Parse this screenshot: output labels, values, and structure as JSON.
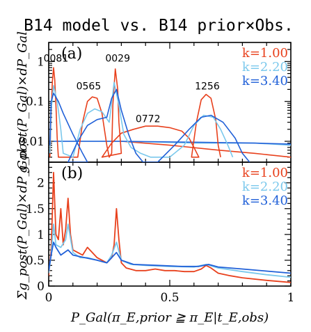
{
  "chart_data": [
    {
      "panel": "(a)",
      "type": "line",
      "title": "B14 model vs. B14 prior×Obs.",
      "xlabel": "",
      "ylabel": "g_post(P_Gal)×dP_Gal",
      "yscale": "log",
      "xlim": [
        0,
        1
      ],
      "ylim": [
        0.003,
        3
      ],
      "yticks": [
        {
          "v": 0.01,
          "label": "0.01"
        },
        {
          "v": 0.1,
          "label": "0.1"
        },
        {
          "v": 1,
          "label": "1"
        }
      ],
      "annotations": [
        {
          "text": "0081",
          "x": 0.03,
          "y": 1.0
        },
        {
          "text": "0029",
          "x": 0.285,
          "y": 1.0
        },
        {
          "text": "0565",
          "x": 0.165,
          "y": 0.2
        },
        {
          "text": "0772",
          "x": 0.41,
          "y": 0.03
        },
        {
          "text": "1256",
          "x": 0.655,
          "y": 0.2
        }
      ],
      "series": [
        {
          "name": "k=1.00",
          "color": "#e8401c",
          "points": [
            [
              0.005,
              0.004
            ],
            [
              0.01,
              0.05
            ],
            [
              0.015,
              0.3
            ],
            [
              0.02,
              0.7
            ],
            [
              0.025,
              0.35
            ],
            [
              0.03,
              0.08
            ],
            [
              0.035,
              0.012
            ],
            [
              0.04,
              0.004
            ],
            [
              0.12,
              0.004
            ],
            [
              0.14,
              0.03
            ],
            [
              0.16,
              0.1
            ],
            [
              0.18,
              0.13
            ],
            [
              0.2,
              0.12
            ],
            [
              0.22,
              0.05
            ],
            [
              0.24,
              0.008
            ],
            [
              0.25,
              0.004
            ],
            [
              0.26,
              0.005
            ],
            [
              0.265,
              0.08
            ],
            [
              0.275,
              0.65
            ],
            [
              0.285,
              0.2
            ],
            [
              0.29,
              0.03
            ],
            [
              0.3,
              0.005
            ],
            [
              0.22,
              0.004
            ],
            [
              0.26,
              0.009
            ],
            [
              0.3,
              0.016
            ],
            [
              0.35,
              0.02
            ],
            [
              0.4,
              0.024
            ],
            [
              0.45,
              0.024
            ],
            [
              0.5,
              0.022
            ],
            [
              0.55,
              0.018
            ],
            [
              0.58,
              0.012
            ],
            [
              0.6,
              0.007
            ],
            [
              0.62,
              0.004
            ],
            [
              0.59,
              0.004
            ],
            [
              0.61,
              0.03
            ],
            [
              0.63,
              0.11
            ],
            [
              0.65,
              0.15
            ],
            [
              0.67,
              0.12
            ],
            [
              0.69,
              0.035
            ],
            [
              0.7,
              0.008
            ],
            [
              0.71,
              0.004
            ]
          ]
        },
        {
          "name": "k=2.20",
          "color": "#7ac8ec",
          "points": [
            [
              0.005,
              0.005
            ],
            [
              0.01,
              0.06
            ],
            [
              0.02,
              0.25
            ],
            [
              0.035,
              0.1
            ],
            [
              0.05,
              0.02
            ],
            [
              0.06,
              0.005
            ],
            [
              0.1,
              0.004
            ],
            [
              0.13,
              0.02
            ],
            [
              0.16,
              0.05
            ],
            [
              0.19,
              0.065
            ],
            [
              0.22,
              0.055
            ],
            [
              0.25,
              0.03
            ],
            [
              0.27,
              0.3
            ],
            [
              0.29,
              0.08
            ],
            [
              0.31,
              0.015
            ],
            [
              0.34,
              0.007
            ],
            [
              0.38,
              0.005
            ],
            [
              0.42,
              0.004
            ],
            [
              0.5,
              0.004
            ],
            [
              0.56,
              0.008
            ],
            [
              0.6,
              0.025
            ],
            [
              0.64,
              0.045
            ],
            [
              0.68,
              0.04
            ],
            [
              0.71,
              0.02
            ],
            [
              0.74,
              0.008
            ],
            [
              0.76,
              0.004
            ]
          ]
        },
        {
          "name": "k=3.40",
          "color": "#2060d8",
          "points": [
            [
              0.005,
              0.008
            ],
            [
              0.01,
              0.1
            ],
            [
              0.02,
              0.16
            ],
            [
              0.04,
              0.1
            ],
            [
              0.06,
              0.05
            ],
            [
              0.1,
              0.015
            ],
            [
              0.14,
              0.005
            ],
            [
              0.16,
              0.003
            ],
            [
              0.08,
              0.003
            ],
            [
              0.12,
              0.01
            ],
            [
              0.16,
              0.025
            ],
            [
              0.2,
              0.035
            ],
            [
              0.24,
              0.04
            ],
            [
              0.26,
              0.12
            ],
            [
              0.28,
              0.2
            ],
            [
              0.3,
              0.06
            ],
            [
              0.33,
              0.015
            ],
            [
              0.36,
              0.005
            ],
            [
              0.39,
              0.003
            ],
            [
              0.45,
              0.003
            ],
            [
              0.52,
              0.008
            ],
            [
              0.58,
              0.02
            ],
            [
              0.63,
              0.04
            ],
            [
              0.67,
              0.045
            ],
            [
              0.72,
              0.03
            ],
            [
              0.77,
              0.012
            ],
            [
              0.8,
              0.005
            ],
            [
              0.83,
              0.003
            ]
          ]
        }
      ],
      "tails": [
        {
          "name": "k=1.00",
          "color": "#e8401c",
          "points": [
            [
              0.3,
              0.01
            ],
            [
              0.5,
              0.008
            ],
            [
              0.7,
              0.006
            ],
            [
              0.85,
              0.005
            ],
            [
              1.0,
              0.004
            ]
          ]
        },
        {
          "name": "k=2.20",
          "color": "#7ac8ec",
          "points": [
            [
              0.05,
              0.01
            ],
            [
              0.3,
              0.01
            ],
            [
              0.6,
              0.009
            ],
            [
              0.85,
              0.009
            ],
            [
              1.0,
              0.008
            ]
          ]
        },
        {
          "name": "k=3.40",
          "color": "#2060d8",
          "points": [
            [
              0.02,
              0.01
            ],
            [
              0.3,
              0.01
            ],
            [
              0.6,
              0.0095
            ],
            [
              0.85,
              0.009
            ],
            [
              1.0,
              0.0085
            ]
          ]
        }
      ],
      "legend": [
        {
          "label": "k=1.00",
          "color": "#e8401c"
        },
        {
          "label": "k=2.20",
          "color": "#7ac8ec"
        },
        {
          "label": "k=3.40",
          "color": "#2060d8"
        }
      ],
      "legend_position": "top-right"
    },
    {
      "panel": "(b)",
      "type": "line",
      "xlabel": "P_Gal(π_E,prior ≧ π_E|t_E,obs)",
      "ylabel": "Σg_post(P_Gal)×dP_Gal",
      "xlim": [
        0,
        1
      ],
      "ylim": [
        0,
        2.4
      ],
      "xticks": [
        {
          "v": 0,
          "label": "0"
        },
        {
          "v": 0.5,
          "label": "0.5"
        },
        {
          "v": 1,
          "label": "1"
        }
      ],
      "yticks": [
        {
          "v": 0,
          "label": "0"
        },
        {
          "v": 0.5,
          "label": "0.5"
        },
        {
          "v": 1,
          "label": "1"
        },
        {
          "v": 1.5,
          "label": "1.5"
        },
        {
          "v": 2,
          "label": "2"
        }
      ],
      "series": [
        {
          "name": "k=1.00",
          "color": "#e8401c",
          "points": [
            [
              0,
              0.2
            ],
            [
              0.01,
              0.7
            ],
            [
              0.015,
              1.4
            ],
            [
              0.02,
              2.2
            ],
            [
              0.03,
              1.0
            ],
            [
              0.04,
              0.9
            ],
            [
              0.05,
              1.5
            ],
            [
              0.06,
              0.8
            ],
            [
              0.07,
              1.1
            ],
            [
              0.08,
              1.7
            ],
            [
              0.09,
              1.0
            ],
            [
              0.1,
              0.7
            ],
            [
              0.12,
              0.65
            ],
            [
              0.14,
              0.6
            ],
            [
              0.16,
              0.75
            ],
            [
              0.18,
              0.65
            ],
            [
              0.2,
              0.55
            ],
            [
              0.22,
              0.5
            ],
            [
              0.24,
              0.45
            ],
            [
              0.26,
              0.55
            ],
            [
              0.27,
              0.8
            ],
            [
              0.28,
              1.5
            ],
            [
              0.29,
              0.9
            ],
            [
              0.3,
              0.45
            ],
            [
              0.32,
              0.35
            ],
            [
              0.36,
              0.3
            ],
            [
              0.4,
              0.3
            ],
            [
              0.44,
              0.33
            ],
            [
              0.48,
              0.3
            ],
            [
              0.52,
              0.3
            ],
            [
              0.56,
              0.28
            ],
            [
              0.6,
              0.28
            ],
            [
              0.63,
              0.33
            ],
            [
              0.65,
              0.4
            ],
            [
              0.67,
              0.35
            ],
            [
              0.7,
              0.25
            ],
            [
              0.75,
              0.2
            ],
            [
              0.8,
              0.16
            ],
            [
              0.9,
              0.11
            ],
            [
              1.0,
              0.07
            ]
          ]
        },
        {
          "name": "k=2.20",
          "color": "#7ac8ec",
          "points": [
            [
              0,
              0.25
            ],
            [
              0.01,
              0.6
            ],
            [
              0.02,
              1.2
            ],
            [
              0.03,
              0.8
            ],
            [
              0.05,
              0.75
            ],
            [
              0.07,
              0.9
            ],
            [
              0.08,
              1.2
            ],
            [
              0.1,
              0.65
            ],
            [
              0.13,
              0.55
            ],
            [
              0.16,
              0.55
            ],
            [
              0.2,
              0.5
            ],
            [
              0.24,
              0.45
            ],
            [
              0.26,
              0.6
            ],
            [
              0.28,
              0.85
            ],
            [
              0.3,
              0.5
            ],
            [
              0.34,
              0.42
            ],
            [
              0.4,
              0.4
            ],
            [
              0.5,
              0.38
            ],
            [
              0.6,
              0.37
            ],
            [
              0.65,
              0.42
            ],
            [
              0.7,
              0.35
            ],
            [
              0.8,
              0.28
            ],
            [
              0.9,
              0.22
            ],
            [
              1.0,
              0.17
            ]
          ]
        },
        {
          "name": "k=3.40",
          "color": "#2060d8",
          "points": [
            [
              0,
              0.3
            ],
            [
              0.01,
              0.6
            ],
            [
              0.02,
              0.85
            ],
            [
              0.03,
              0.75
            ],
            [
              0.05,
              0.6
            ],
            [
              0.08,
              0.7
            ],
            [
              0.1,
              0.6
            ],
            [
              0.15,
              0.55
            ],
            [
              0.2,
              0.5
            ],
            [
              0.24,
              0.45
            ],
            [
              0.26,
              0.55
            ],
            [
              0.28,
              0.65
            ],
            [
              0.3,
              0.5
            ],
            [
              0.35,
              0.42
            ],
            [
              0.45,
              0.4
            ],
            [
              0.55,
              0.38
            ],
            [
              0.62,
              0.38
            ],
            [
              0.66,
              0.42
            ],
            [
              0.7,
              0.37
            ],
            [
              0.8,
              0.33
            ],
            [
              0.9,
              0.29
            ],
            [
              1.0,
              0.25
            ]
          ]
        }
      ],
      "legend": [
        {
          "label": "k=1.00",
          "color": "#e8401c"
        },
        {
          "label": "k=2.20",
          "color": "#7ac8ec"
        },
        {
          "label": "k=3.40",
          "color": "#2060d8"
        }
      ],
      "legend_position": "top-right"
    }
  ]
}
